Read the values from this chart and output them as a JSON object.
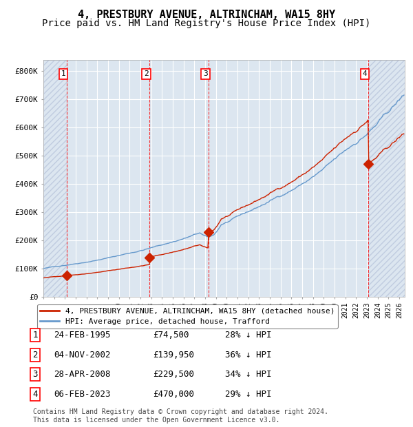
{
  "title": "4, PRESTBURY AVENUE, ALTRINCHAM, WA15 8HY",
  "subtitle": "Price paid vs. HM Land Registry's House Price Index (HPI)",
  "ylim": [
    0,
    840000
  ],
  "xlim_start": 1993.0,
  "xlim_end": 2026.5,
  "yticks": [
    0,
    100000,
    200000,
    300000,
    400000,
    500000,
    600000,
    700000,
    800000
  ],
  "ytick_labels": [
    "£0",
    "£100K",
    "£200K",
    "£300K",
    "£400K",
    "£500K",
    "£600K",
    "£700K",
    "£800K"
  ],
  "sale_dates": [
    1995.15,
    2002.84,
    2008.32,
    2023.1
  ],
  "sale_prices": [
    74500,
    139950,
    229500,
    470000
  ],
  "hpi_color": "#6699cc",
  "price_color": "#cc2200",
  "bg_color": "#dce6f0",
  "grid_color": "#ffffff",
  "hatch_color": "#c0cce0",
  "legend_label_red": "4, PRESTBURY AVENUE, ALTRINCHAM, WA15 8HY (detached house)",
  "legend_label_blue": "HPI: Average price, detached house, Trafford",
  "table_rows": [
    [
      "1",
      "24-FEB-1995",
      "£74,500",
      "28% ↓ HPI"
    ],
    [
      "2",
      "04-NOV-2002",
      "£139,950",
      "36% ↓ HPI"
    ],
    [
      "3",
      "28-APR-2008",
      "£229,500",
      "34% ↓ HPI"
    ],
    [
      "4",
      "06-FEB-2023",
      "£470,000",
      "29% ↓ HPI"
    ]
  ],
  "footnote": "Contains HM Land Registry data © Crown copyright and database right 2024.\nThis data is licensed under the Open Government Licence v3.0.",
  "title_fontsize": 11,
  "subtitle_fontsize": 10
}
